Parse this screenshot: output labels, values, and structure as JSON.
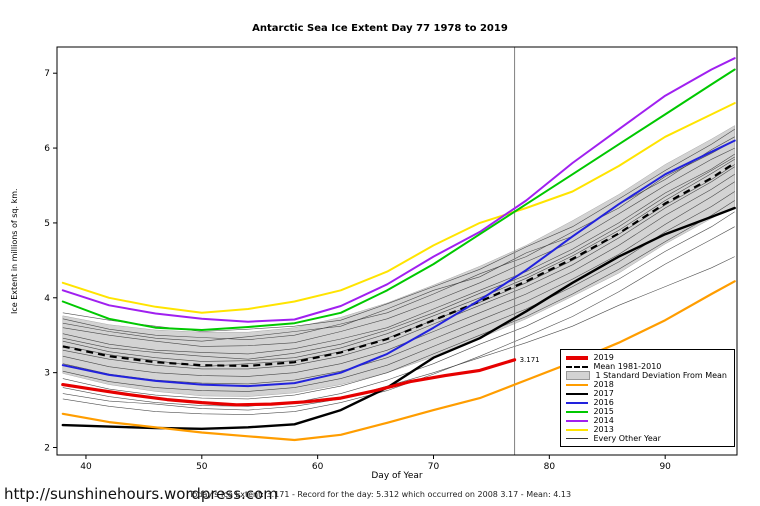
{
  "footer": {
    "url": "http://sunshinehours.wordpress.com",
    "summary": "Today's Ice Extent: 3.171  - Record for the day: 5.312 which occurred on 2008 3.17  - Mean: 4.13"
  },
  "legend": {
    "items": [
      {
        "label": "2019",
        "type": "line",
        "color": "#e60000",
        "thickness": 4
      },
      {
        "label": "Mean 1981-2010",
        "type": "dashed",
        "color": "#000000",
        "thickness": 2
      },
      {
        "label": "1 Standard Deviation From Mean",
        "type": "box",
        "color": "#d3d3d3"
      },
      {
        "label": "2018",
        "type": "line",
        "color": "#ff9d00",
        "thickness": 2
      },
      {
        "label": "2017",
        "type": "line",
        "color": "#000000",
        "thickness": 2
      },
      {
        "label": "2016",
        "type": "line",
        "color": "#2222dd",
        "thickness": 2
      },
      {
        "label": "2015",
        "type": "line",
        "color": "#00c800",
        "thickness": 2
      },
      {
        "label": "2014",
        "type": "line",
        "color": "#a020f0",
        "thickness": 2
      },
      {
        "label": "2013",
        "type": "line",
        "color": "#ffe400",
        "thickness": 2
      },
      {
        "label": "Every Other Year",
        "type": "line",
        "color": "#333333",
        "thickness": 1
      }
    ]
  },
  "chart_data": {
    "type": "line",
    "title": "Antarctic Sea Ice Extent Day 77 1978 to 2019",
    "xlabel": "Day of Year",
    "ylabel": "Ice Extent in millions of sq. km.",
    "xlim": [
      37.5,
      96.2
    ],
    "ylim": [
      1.9,
      7.35
    ],
    "x_ticks": [
      40,
      50,
      60,
      70,
      80,
      90
    ],
    "y_ticks": [
      2,
      3,
      4,
      5,
      6,
      7
    ],
    "marker_day": 77,
    "marker_color": "#808080",
    "x": [
      38,
      42,
      46,
      50,
      54,
      58,
      62,
      66,
      70,
      74,
      78,
      82,
      86,
      90,
      94,
      96
    ],
    "band": {
      "name": "1 Standard Deviation From Mean",
      "color": "#d3d3d3",
      "upper": [
        3.76,
        3.64,
        3.57,
        3.54,
        3.54,
        3.6,
        3.74,
        3.93,
        4.17,
        4.42,
        4.7,
        5.03,
        5.38,
        5.78,
        6.12,
        6.3
      ],
      "lower": [
        2.99,
        2.84,
        2.75,
        2.69,
        2.68,
        2.73,
        2.84,
        3.0,
        3.21,
        3.46,
        3.72,
        4.02,
        4.33,
        4.72,
        5.06,
        5.22
      ]
    },
    "mean": {
      "name": "Mean 1981-2010",
      "color": "#000000",
      "style": "dashed",
      "values": [
        3.35,
        3.22,
        3.14,
        3.1,
        3.09,
        3.14,
        3.27,
        3.45,
        3.7,
        3.95,
        4.22,
        4.52,
        4.86,
        5.26,
        5.6,
        5.8
      ]
    },
    "series": [
      {
        "name": "2013",
        "color": "#ffe400",
        "width": 2,
        "values": [
          4.2,
          4.0,
          3.88,
          3.8,
          3.85,
          3.95,
          4.1,
          4.35,
          4.7,
          5.0,
          5.2,
          5.42,
          5.76,
          6.15,
          6.45,
          6.6
        ]
      },
      {
        "name": "2014",
        "color": "#a020f0",
        "width": 2,
        "values": [
          4.1,
          3.9,
          3.79,
          3.72,
          3.68,
          3.71,
          3.89,
          4.18,
          4.55,
          4.88,
          5.3,
          5.8,
          6.25,
          6.7,
          7.05,
          7.2
        ]
      },
      {
        "name": "2015",
        "color": "#00c800",
        "width": 2,
        "values": [
          3.95,
          3.72,
          3.6,
          3.57,
          3.61,
          3.66,
          3.8,
          4.1,
          4.45,
          4.85,
          5.25,
          5.65,
          6.05,
          6.45,
          6.85,
          7.05
        ]
      },
      {
        "name": "2016",
        "color": "#2222dd",
        "width": 2,
        "values": [
          3.1,
          2.97,
          2.89,
          2.84,
          2.82,
          2.86,
          3.0,
          3.25,
          3.6,
          3.97,
          4.37,
          4.82,
          5.25,
          5.65,
          5.95,
          6.1
        ]
      },
      {
        "name": "2017",
        "color": "#000000",
        "width": 2.4,
        "values": [
          2.3,
          2.28,
          2.26,
          2.25,
          2.27,
          2.31,
          2.5,
          2.8,
          3.2,
          3.46,
          3.82,
          4.2,
          4.55,
          4.85,
          5.08,
          5.2
        ]
      },
      {
        "name": "2018",
        "color": "#ff9d00",
        "width": 2.2,
        "values": [
          2.45,
          2.34,
          2.27,
          2.2,
          2.15,
          2.1,
          2.17,
          2.33,
          2.5,
          2.66,
          2.9,
          3.14,
          3.4,
          3.7,
          4.05,
          4.22
        ]
      },
      {
        "name": "2019",
        "color": "#e60000",
        "width": 3.2,
        "x": [
          38,
          41,
          44,
          47,
          50,
          53,
          56,
          59,
          62,
          65,
          68,
          71,
          74,
          77
        ],
        "values": [
          2.84,
          2.77,
          2.7,
          2.64,
          2.6,
          2.57,
          2.58,
          2.61,
          2.66,
          2.76,
          2.88,
          2.96,
          3.03,
          3.171
        ],
        "endpoint_label": "3.171"
      }
    ],
    "background_series": {
      "name": "Every Other Year",
      "color": "#333333",
      "width": 0.6,
      "lines": [
        [
          3.8,
          3.7,
          3.62,
          3.55,
          3.58,
          3.62,
          3.7,
          3.92,
          4.15,
          4.38,
          4.68,
          4.95,
          5.32,
          5.7,
          6.05,
          6.25
        ],
        [
          3.72,
          3.58,
          3.5,
          3.47,
          3.44,
          3.5,
          3.65,
          3.8,
          4.05,
          4.32,
          4.55,
          4.88,
          5.2,
          5.62,
          5.93,
          6.1
        ],
        [
          3.6,
          3.5,
          3.42,
          3.35,
          3.36,
          3.4,
          3.55,
          3.72,
          3.95,
          4.2,
          4.48,
          4.75,
          5.12,
          5.5,
          5.85,
          6.0
        ],
        [
          3.52,
          3.38,
          3.3,
          3.27,
          3.25,
          3.32,
          3.45,
          3.6,
          3.85,
          4.1,
          4.35,
          4.65,
          5.0,
          5.4,
          5.72,
          5.92
        ],
        [
          3.42,
          3.28,
          3.2,
          3.15,
          3.16,
          3.2,
          3.33,
          3.52,
          3.76,
          4.0,
          4.26,
          4.56,
          4.9,
          5.3,
          5.66,
          5.85
        ],
        [
          3.3,
          3.18,
          3.1,
          3.05,
          3.05,
          3.1,
          3.22,
          3.4,
          3.65,
          3.9,
          4.15,
          4.44,
          4.8,
          5.2,
          5.55,
          5.75
        ],
        [
          3.22,
          3.08,
          3.0,
          2.96,
          2.95,
          3.0,
          3.12,
          3.3,
          3.55,
          3.8,
          4.05,
          4.35,
          4.7,
          5.1,
          5.45,
          5.65
        ],
        [
          3.12,
          2.98,
          2.9,
          2.86,
          2.85,
          2.9,
          3.02,
          3.2,
          3.45,
          3.7,
          3.95,
          4.25,
          4.58,
          4.98,
          5.35,
          5.55
        ],
        [
          3.02,
          2.88,
          2.8,
          2.76,
          2.75,
          2.8,
          2.92,
          3.1,
          3.35,
          3.6,
          3.85,
          4.15,
          4.48,
          4.88,
          5.22,
          5.42
        ],
        [
          2.92,
          2.78,
          2.7,
          2.66,
          2.65,
          2.7,
          2.82,
          3.0,
          3.25,
          3.5,
          3.75,
          4.05,
          4.38,
          4.75,
          5.1,
          5.3
        ],
        [
          2.8,
          2.68,
          2.6,
          2.56,
          2.55,
          2.6,
          2.72,
          2.9,
          3.12,
          3.38,
          3.62,
          3.92,
          4.25,
          4.62,
          4.95,
          5.15
        ],
        [
          2.65,
          2.55,
          2.48,
          2.45,
          2.44,
          2.48,
          2.6,
          2.76,
          2.98,
          3.22,
          3.48,
          3.75,
          4.08,
          4.45,
          4.78,
          4.95
        ],
        [
          3.66,
          3.55,
          3.46,
          3.42,
          3.48,
          3.55,
          3.62,
          3.85,
          4.1,
          4.28,
          4.6,
          4.82,
          5.25,
          5.58,
          5.98,
          6.15
        ],
        [
          2.72,
          2.62,
          2.58,
          2.52,
          2.5,
          2.55,
          2.65,
          2.82,
          3.0,
          3.2,
          3.4,
          3.62,
          3.9,
          4.15,
          4.4,
          4.55
        ],
        [
          3.46,
          3.33,
          3.27,
          3.22,
          3.18,
          3.26,
          3.38,
          3.57,
          3.8,
          4.06,
          4.3,
          4.6,
          4.95,
          5.35,
          5.7,
          5.88
        ],
        [
          3.36,
          3.24,
          3.16,
          3.08,
          3.12,
          3.16,
          3.28,
          3.46,
          3.7,
          3.94,
          4.2,
          4.5,
          4.85,
          5.24,
          5.58,
          5.78
        ]
      ]
    }
  }
}
